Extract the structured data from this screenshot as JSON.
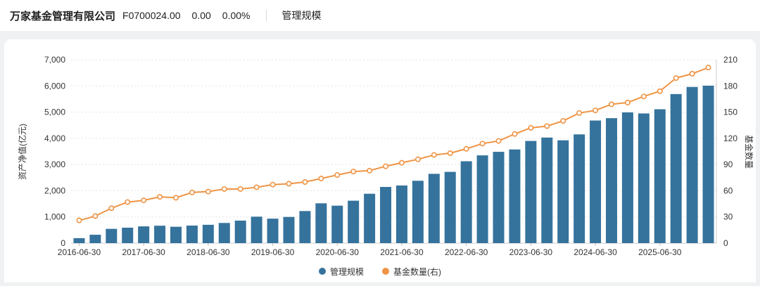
{
  "header": {
    "company": "万家基金管理有限公司",
    "code": "F0700024.00",
    "value": "0.00",
    "percent": "0.00%",
    "tab": "管理规模"
  },
  "chart_data": {
    "type": "bar+line",
    "categories": [
      "2016-06-30",
      "2016-09-30",
      "2016-12-31",
      "2017-03-31",
      "2017-06-30",
      "2017-09-30",
      "2017-12-31",
      "2018-03-31",
      "2018-06-30",
      "2018-09-30",
      "2018-12-31",
      "2019-03-31",
      "2019-06-30",
      "2019-09-30",
      "2019-12-31",
      "2020-03-31",
      "2020-06-30",
      "2020-09-30",
      "2020-12-31",
      "2021-03-31",
      "2021-06-30",
      "2021-09-30",
      "2021-12-31",
      "2022-03-31",
      "2022-06-30",
      "2022-09-30",
      "2022-12-31",
      "2023-03-31",
      "2023-06-30",
      "2023-09-30",
      "2023-12-31",
      "2024-03-31",
      "2024-06-30",
      "2024-09-30",
      "2024-12-31",
      "2025-03-31",
      "2025-06-30",
      "2025-09-30",
      "2025-12-31",
      "2026-03-31"
    ],
    "x_label_every": 4,
    "series": [
      {
        "name": "管理规模",
        "type": "bar",
        "axis": "left",
        "color": "#35739d",
        "values": [
          190,
          320,
          545,
          590,
          640,
          665,
          625,
          670,
          700,
          770,
          860,
          1010,
          935,
          1000,
          1225,
          1520,
          1430,
          1620,
          1885,
          2145,
          2200,
          2380,
          2645,
          2720,
          3125,
          3350,
          3485,
          3575,
          3900,
          4030,
          3925,
          4150,
          4680,
          4770,
          4990,
          4950,
          5110,
          5690,
          5960,
          6010
        ]
      },
      {
        "name": "基金数量(右)",
        "type": "line",
        "axis": "right",
        "color": "#ef9445",
        "values": [
          26,
          31,
          40,
          47,
          49,
          53,
          52,
          58,
          59,
          62,
          62,
          64,
          67,
          68,
          70,
          74,
          78,
          82,
          83,
          88,
          92,
          96,
          101,
          103,
          108,
          114,
          117,
          125,
          132,
          134,
          140,
          149,
          152,
          159,
          161,
          168,
          174,
          189,
          194,
          201
        ]
      }
    ],
    "left_axis": {
      "title": "资产净值(亿元)",
      "min": 0,
      "max": 7000,
      "step": 1000
    },
    "right_axis": {
      "title": "基金数量",
      "min": 0,
      "max": 210,
      "step": 30
    },
    "legend_position": "bottom",
    "grid": true
  }
}
